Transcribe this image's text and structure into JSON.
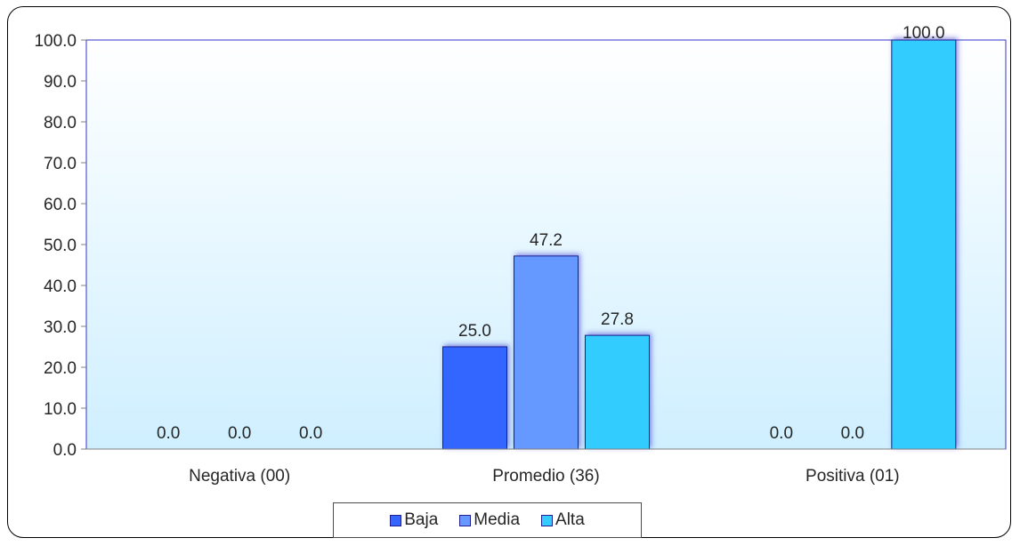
{
  "chart_data": {
    "type": "bar",
    "categories": [
      "Negativa (00)",
      "Promedio (36)",
      "Positiva (01)"
    ],
    "series": [
      {
        "name": "Baja",
        "values": [
          0.0,
          25.0,
          0.0
        ],
        "color": "#3366ff",
        "value_labels": [
          "0.0",
          "25.0",
          "0.0"
        ]
      },
      {
        "name": "Media",
        "values": [
          0.0,
          47.2,
          0.0
        ],
        "color": "#6699ff",
        "value_labels": [
          "0.0",
          "47.2",
          "0.0"
        ]
      },
      {
        "name": "Alta",
        "values": [
          0.0,
          27.8,
          100.0
        ],
        "color": "#33ccff",
        "value_labels": [
          "0.0",
          "27.8",
          "100.0"
        ]
      }
    ],
    "y_ticks": [
      "0.0",
      "10.0",
      "20.0",
      "30.0",
      "40.0",
      "50.0",
      "60.0",
      "70.0",
      "80.0",
      "90.0",
      "100.0"
    ],
    "ylim": [
      0,
      100
    ],
    "title": "",
    "xlabel": "",
    "ylabel": "",
    "grid": false,
    "legend_position": "bottom",
    "plot_background": [
      "#ffffff",
      "#cfefff"
    ],
    "plot_border_color": "#3333cc",
    "bar_border_color": "#1f1f8f"
  }
}
